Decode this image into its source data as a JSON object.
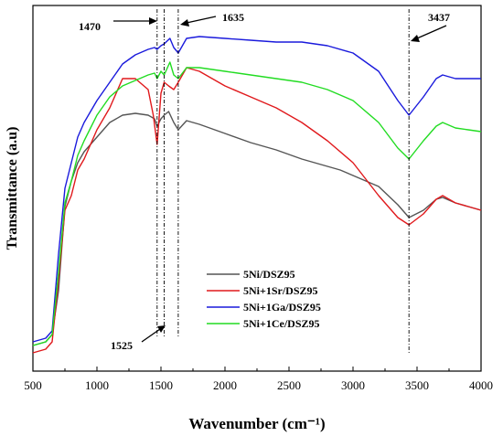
{
  "chart_data": {
    "type": "line",
    "title": "",
    "xlabel": "Wavenumber (cm⁻¹)",
    "ylabel": "Transmittance (a.u)",
    "xlim": [
      500,
      4000
    ],
    "ylim": [
      0,
      1
    ],
    "x_ticks": [
      "500",
      "1000",
      "1500",
      "2000",
      "2500",
      "3000",
      "3500",
      "4000"
    ],
    "y_ticks_shown": false,
    "grid": false,
    "legend_position": "lower-center",
    "series": [
      {
        "name": "5Ni/DSZ95",
        "color": "#555555",
        "x": [
          500,
          600,
          650,
          700,
          750,
          800,
          850,
          900,
          1000,
          1100,
          1200,
          1300,
          1400,
          1450,
          1470,
          1500,
          1525,
          1560,
          1600,
          1635,
          1700,
          1800,
          2000,
          2200,
          2400,
          2600,
          2800,
          2900,
          3000,
          3200,
          3350,
          3437,
          3550,
          3650,
          3700,
          3800,
          3900,
          4000
        ],
        "y": [
          0.07,
          0.08,
          0.1,
          0.22,
          0.45,
          0.52,
          0.57,
          0.6,
          0.64,
          0.68,
          0.7,
          0.705,
          0.7,
          0.69,
          0.67,
          0.69,
          0.7,
          0.71,
          0.68,
          0.66,
          0.685,
          0.675,
          0.65,
          0.625,
          0.605,
          0.58,
          0.56,
          0.55,
          0.535,
          0.505,
          0.455,
          0.42,
          0.44,
          0.47,
          0.475,
          0.46,
          0.45,
          0.44
        ]
      },
      {
        "name": "5Ni+1Sr/DSZ95",
        "color": "#e0191c",
        "x": [
          500,
          600,
          650,
          700,
          750,
          800,
          850,
          900,
          1000,
          1100,
          1200,
          1300,
          1400,
          1440,
          1470,
          1500,
          1525,
          1560,
          1600,
          1635,
          1700,
          1800,
          2000,
          2200,
          2400,
          2600,
          2800,
          3000,
          3200,
          3350,
          3437,
          3550,
          3650,
          3700,
          3800,
          3900,
          4000
        ],
        "y": [
          0.05,
          0.06,
          0.08,
          0.25,
          0.44,
          0.48,
          0.55,
          0.58,
          0.66,
          0.72,
          0.8,
          0.8,
          0.77,
          0.7,
          0.62,
          0.76,
          0.79,
          0.78,
          0.77,
          0.79,
          0.83,
          0.82,
          0.78,
          0.75,
          0.72,
          0.68,
          0.63,
          0.57,
          0.48,
          0.42,
          0.4,
          0.43,
          0.47,
          0.48,
          0.46,
          0.45,
          0.44
        ]
      },
      {
        "name": "5Ni+1Ga/DSZ95",
        "color": "#1a1adc",
        "x": [
          500,
          600,
          650,
          700,
          750,
          800,
          850,
          900,
          1000,
          1100,
          1200,
          1300,
          1400,
          1450,
          1470,
          1500,
          1525,
          1570,
          1600,
          1635,
          1700,
          1800,
          2000,
          2200,
          2400,
          2600,
          2800,
          3000,
          3200,
          3350,
          3437,
          3550,
          3650,
          3700,
          3800,
          3900,
          4000
        ],
        "y": [
          0.08,
          0.09,
          0.11,
          0.32,
          0.5,
          0.57,
          0.64,
          0.68,
          0.74,
          0.79,
          0.84,
          0.865,
          0.88,
          0.885,
          0.88,
          0.89,
          0.895,
          0.91,
          0.885,
          0.87,
          0.91,
          0.915,
          0.91,
          0.905,
          0.9,
          0.9,
          0.89,
          0.87,
          0.82,
          0.74,
          0.7,
          0.75,
          0.8,
          0.81,
          0.8,
          0.8,
          0.8
        ]
      },
      {
        "name": "5Ni+1Ce/DSZ95",
        "color": "#22dc22",
        "x": [
          500,
          600,
          650,
          700,
          750,
          800,
          850,
          900,
          1000,
          1100,
          1200,
          1300,
          1400,
          1450,
          1470,
          1500,
          1525,
          1570,
          1600,
          1635,
          1700,
          1800,
          2000,
          2200,
          2400,
          2600,
          2800,
          3000,
          3200,
          3350,
          3437,
          3550,
          3650,
          3700,
          3800,
          3900,
          4000
        ],
        "y": [
          0.07,
          0.08,
          0.1,
          0.27,
          0.46,
          0.52,
          0.59,
          0.63,
          0.7,
          0.75,
          0.78,
          0.795,
          0.81,
          0.815,
          0.8,
          0.82,
          0.81,
          0.845,
          0.81,
          0.8,
          0.83,
          0.83,
          0.82,
          0.81,
          0.8,
          0.79,
          0.77,
          0.74,
          0.68,
          0.61,
          0.58,
          0.63,
          0.67,
          0.68,
          0.665,
          0.66,
          0.655
        ]
      }
    ],
    "annotations": [
      {
        "label": "1470",
        "x": 1470
      },
      {
        "label": "1635",
        "x": 1635
      },
      {
        "label": "3437",
        "x": 3437
      },
      {
        "label": "1525",
        "x": 1525
      }
    ]
  }
}
